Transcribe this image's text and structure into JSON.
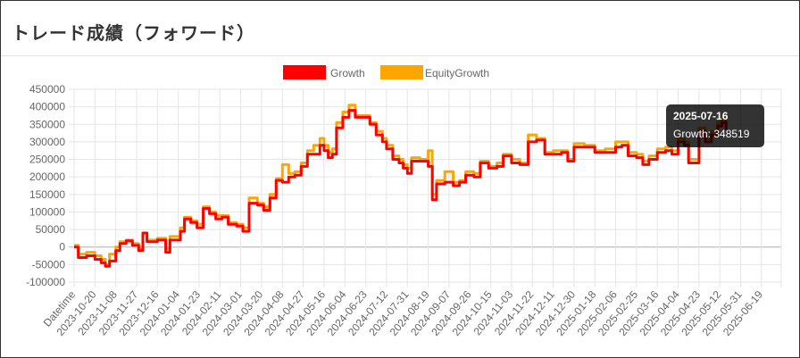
{
  "page": {
    "title": "トレード成績（フォワード）"
  },
  "chart_data": {
    "type": "line",
    "title": "",
    "xlabel": "",
    "ylabel": "",
    "ylim": [
      -100000,
      450000
    ],
    "yticks": [
      450000,
      400000,
      350000,
      300000,
      250000,
      200000,
      150000,
      100000,
      50000,
      0,
      -50000,
      -100000
    ],
    "x_tick_labels": [
      "Datetime",
      "2023-10-20",
      "2023-11-08",
      "2023-11-27",
      "2023-12-16",
      "2024-01-04",
      "2024-01-23",
      "2024-02-11",
      "2024-03-01",
      "2024-03-20",
      "2024-04-08",
      "2024-04-27",
      "2024-05-16",
      "2024-06-04",
      "2024-06-23",
      "2024-07-12",
      "2024-07-31",
      "2024-08-19",
      "2024-09-07",
      "2024-09-26",
      "2024-10-15",
      "2024-11-03",
      "2024-11-22",
      "2024-12-11",
      "2024-12-30",
      "2025-01-18",
      "2025-02-06",
      "2025-02-25",
      "2025-03-16",
      "2025-04-04",
      "2025-04-23",
      "2025-05-12",
      "2025-05-31",
      "2025-06-19"
    ],
    "grid": true,
    "legend": "top",
    "series": [
      {
        "name": "Growth",
        "color": "#ff0000",
        "points": [
          [
            0,
            0
          ],
          [
            0.2,
            -30000
          ],
          [
            0.6,
            -25000
          ],
          [
            1,
            -35000
          ],
          [
            1.3,
            -45000
          ],
          [
            1.5,
            -55000
          ],
          [
            1.7,
            -40000
          ],
          [
            2,
            -10000
          ],
          [
            2.2,
            10000
          ],
          [
            2.5,
            18000
          ],
          [
            2.8,
            5000
          ],
          [
            3.1,
            -10000
          ],
          [
            3.3,
            40000
          ],
          [
            3.5,
            15000
          ],
          [
            4,
            20000
          ],
          [
            4.4,
            -15000
          ],
          [
            4.6,
            20000
          ],
          [
            5.1,
            45000
          ],
          [
            5.3,
            80000
          ],
          [
            5.6,
            70000
          ],
          [
            5.9,
            55000
          ],
          [
            6.2,
            110000
          ],
          [
            6.5,
            95000
          ],
          [
            6.8,
            80000
          ],
          [
            7.1,
            85000
          ],
          [
            7.4,
            65000
          ],
          [
            7.8,
            60000
          ],
          [
            8.1,
            45000
          ],
          [
            8.4,
            125000
          ],
          [
            8.8,
            120000
          ],
          [
            9.1,
            105000
          ],
          [
            9.4,
            140000
          ],
          [
            9.7,
            190000
          ],
          [
            10,
            185000
          ],
          [
            10.3,
            200000
          ],
          [
            10.6,
            205000
          ],
          [
            10.9,
            230000
          ],
          [
            11.2,
            265000
          ],
          [
            11.5,
            265000
          ],
          [
            11.8,
            290000
          ],
          [
            12,
            275000
          ],
          [
            12.2,
            255000
          ],
          [
            12.4,
            265000
          ],
          [
            12.6,
            340000
          ],
          [
            12.9,
            370000
          ],
          [
            13.2,
            390000
          ],
          [
            13.5,
            370000
          ],
          [
            13.9,
            370000
          ],
          [
            14.2,
            350000
          ],
          [
            14.5,
            320000
          ],
          [
            14.8,
            300000
          ],
          [
            15,
            280000
          ],
          [
            15.3,
            250000
          ],
          [
            15.6,
            240000
          ],
          [
            15.8,
            225000
          ],
          [
            16,
            210000
          ],
          [
            16.2,
            245000
          ],
          [
            16.6,
            245000
          ],
          [
            17,
            230000
          ],
          [
            17.2,
            135000
          ],
          [
            17.4,
            180000
          ],
          [
            17.8,
            185000
          ],
          [
            18.2,
            175000
          ],
          [
            18.5,
            185000
          ],
          [
            18.8,
            205000
          ],
          [
            19.2,
            200000
          ],
          [
            19.5,
            240000
          ],
          [
            19.9,
            225000
          ],
          [
            20.3,
            230000
          ],
          [
            20.6,
            260000
          ],
          [
            21,
            240000
          ],
          [
            21.4,
            235000
          ],
          [
            21.8,
            300000
          ],
          [
            22.2,
            305000
          ],
          [
            22.6,
            265000
          ],
          [
            23,
            265000
          ],
          [
            23.4,
            270000
          ],
          [
            23.7,
            245000
          ],
          [
            24,
            285000
          ],
          [
            24.5,
            285000
          ],
          [
            25,
            270000
          ],
          [
            25.5,
            270000
          ],
          [
            26,
            285000
          ],
          [
            26.3,
            290000
          ],
          [
            26.6,
            260000
          ],
          [
            27,
            255000
          ],
          [
            27.3,
            235000
          ],
          [
            27.6,
            250000
          ],
          [
            28,
            270000
          ],
          [
            28.4,
            275000
          ],
          [
            28.7,
            265000
          ],
          [
            29,
            300000
          ],
          [
            29.3,
            290000
          ],
          [
            29.5,
            240000
          ],
          [
            29.8,
            240000
          ],
          [
            30,
            330000
          ],
          [
            30.3,
            300000
          ],
          [
            30.6,
            320000
          ],
          [
            30.9,
            345000
          ],
          [
            31.1,
            355000
          ],
          [
            31.3,
            335000
          ]
        ]
      },
      {
        "name": "EquityGrowth",
        "color": "#ffa500",
        "points": [
          [
            0,
            5000
          ],
          [
            0.2,
            -20000
          ],
          [
            0.6,
            -15000
          ],
          [
            1,
            -25000
          ],
          [
            1.3,
            -35000
          ],
          [
            1.5,
            -50000
          ],
          [
            1.7,
            -20000
          ],
          [
            2,
            0
          ],
          [
            2.2,
            15000
          ],
          [
            2.5,
            20000
          ],
          [
            2.8,
            10000
          ],
          [
            3.1,
            -5000
          ],
          [
            3.3,
            40000
          ],
          [
            3.5,
            20000
          ],
          [
            4,
            25000
          ],
          [
            4.4,
            -5000
          ],
          [
            4.6,
            30000
          ],
          [
            5.1,
            55000
          ],
          [
            5.3,
            85000
          ],
          [
            5.6,
            75000
          ],
          [
            5.9,
            65000
          ],
          [
            6.2,
            115000
          ],
          [
            6.5,
            100000
          ],
          [
            6.8,
            90000
          ],
          [
            7.1,
            90000
          ],
          [
            7.4,
            70000
          ],
          [
            7.8,
            65000
          ],
          [
            8.1,
            55000
          ],
          [
            8.4,
            140000
          ],
          [
            8.8,
            125000
          ],
          [
            9.1,
            115000
          ],
          [
            9.4,
            150000
          ],
          [
            9.7,
            195000
          ],
          [
            10,
            235000
          ],
          [
            10.3,
            210000
          ],
          [
            10.6,
            215000
          ],
          [
            10.9,
            240000
          ],
          [
            11.2,
            275000
          ],
          [
            11.5,
            290000
          ],
          [
            11.8,
            310000
          ],
          [
            12,
            290000
          ],
          [
            12.2,
            270000
          ],
          [
            12.4,
            280000
          ],
          [
            12.6,
            355000
          ],
          [
            12.9,
            385000
          ],
          [
            13.2,
            405000
          ],
          [
            13.5,
            375000
          ],
          [
            13.9,
            375000
          ],
          [
            14.2,
            355000
          ],
          [
            14.5,
            330000
          ],
          [
            14.8,
            310000
          ],
          [
            15,
            290000
          ],
          [
            15.3,
            260000
          ],
          [
            15.6,
            250000
          ],
          [
            15.8,
            235000
          ],
          [
            16,
            225000
          ],
          [
            16.2,
            255000
          ],
          [
            16.6,
            250000
          ],
          [
            17,
            275000
          ],
          [
            17.2,
            150000
          ],
          [
            17.4,
            190000
          ],
          [
            17.8,
            215000
          ],
          [
            18.2,
            185000
          ],
          [
            18.5,
            190000
          ],
          [
            18.8,
            215000
          ],
          [
            19.2,
            210000
          ],
          [
            19.5,
            245000
          ],
          [
            19.9,
            230000
          ],
          [
            20.3,
            240000
          ],
          [
            20.6,
            265000
          ],
          [
            21,
            250000
          ],
          [
            21.4,
            240000
          ],
          [
            21.8,
            320000
          ],
          [
            22.2,
            310000
          ],
          [
            22.6,
            270000
          ],
          [
            23,
            275000
          ],
          [
            23.4,
            275000
          ],
          [
            23.7,
            250000
          ],
          [
            24,
            295000
          ],
          [
            24.5,
            290000
          ],
          [
            25,
            275000
          ],
          [
            25.5,
            280000
          ],
          [
            26,
            300000
          ],
          [
            26.3,
            300000
          ],
          [
            26.6,
            270000
          ],
          [
            27,
            265000
          ],
          [
            27.3,
            245000
          ],
          [
            27.6,
            260000
          ],
          [
            28,
            280000
          ],
          [
            28.4,
            285000
          ],
          [
            28.7,
            275000
          ],
          [
            29,
            310000
          ],
          [
            29.3,
            300000
          ],
          [
            29.5,
            250000
          ],
          [
            29.8,
            250000
          ],
          [
            30,
            340000
          ],
          [
            30.3,
            310000
          ],
          [
            30.6,
            330000
          ],
          [
            30.9,
            355000
          ],
          [
            31.1,
            365000
          ],
          [
            31.3,
            345000
          ]
        ]
      }
    ]
  },
  "tooltip": {
    "date": "2025-07-16",
    "text": "Growth: 348519"
  }
}
